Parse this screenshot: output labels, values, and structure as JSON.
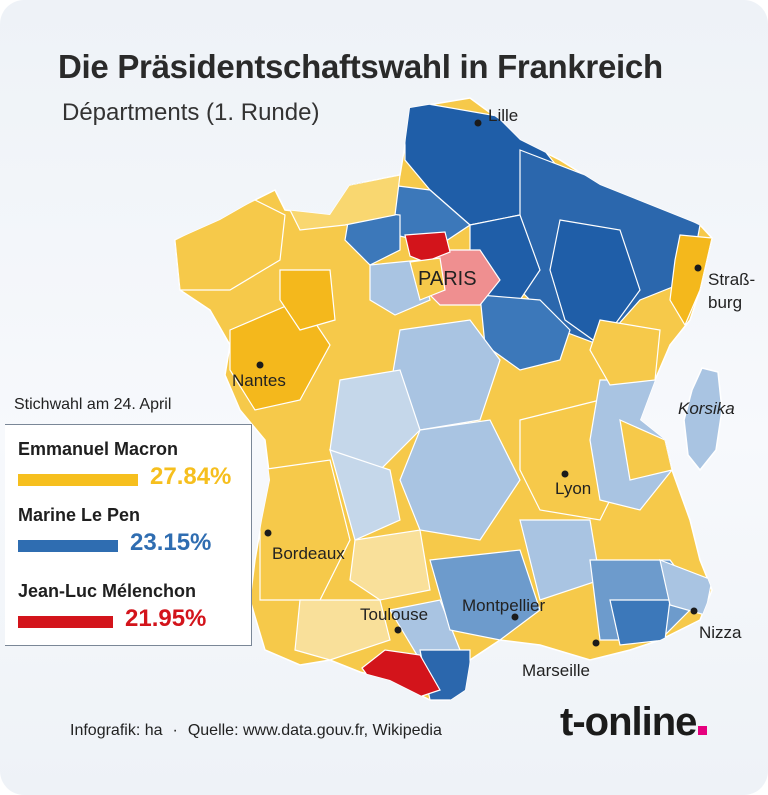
{
  "header": {
    "title": "Die Präsidentschaftswahl in Frankreich",
    "subtitle": "Départments (1. Runde)"
  },
  "legend": {
    "note": "Stichwahl am 24. April",
    "candidates": [
      {
        "name": "Emmanuel Macron",
        "percent": "27.84%",
        "share": 27.84,
        "color": "#f6bf1e"
      },
      {
        "name": "Marine Le Pen",
        "percent": "23.15%",
        "share": 23.15,
        "color": "#2f6db1"
      },
      {
        "name": "Jean-Luc Mélenchon",
        "percent": "21.95%",
        "share": 21.95,
        "color": "#d3141b"
      }
    ]
  },
  "map": {
    "cities": {
      "lille": "Lille",
      "paris": "PARIS",
      "strassburg_line1": "Straß-",
      "strassburg_line2": "burg",
      "nantes": "Nantes",
      "korsika": "Korsika",
      "lyon": "Lyon",
      "bordeaux": "Bordeaux",
      "toulouse": "Toulouse",
      "montpellier": "Montpellier",
      "nizza": "Nizza",
      "marseille": "Marseille"
    },
    "colors": {
      "macron_strong": "#f4b81c",
      "macron": "#f6c94a",
      "macron_light": "#f9e09a",
      "lepen_strong": "#1f5ea8",
      "lepen": "#3c78ba",
      "lepen_light": "#a9c4e2",
      "melenchon": "#d3141b",
      "melenchon_light": "#ef8f90"
    }
  },
  "footer": {
    "credit": "Infografik: ha",
    "separator": "·",
    "source": "Quelle: www.data.gouv.fr, Wikipedia",
    "brand": "t-online"
  }
}
